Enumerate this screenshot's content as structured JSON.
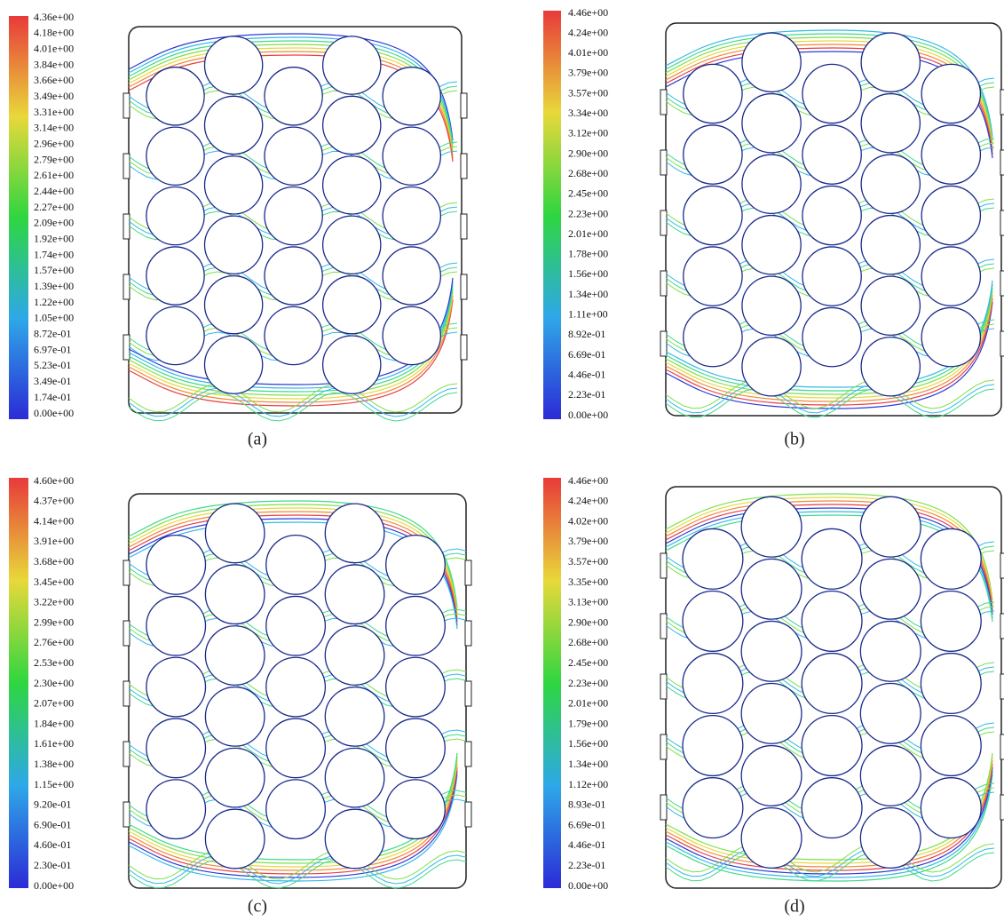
{
  "panels": [
    {
      "caption": "(a)",
      "colorbar_labels": [
        "4.36e+00",
        "4.18e+00",
        "4.01e+00",
        "3.84e+00",
        "3.66e+00",
        "3.49e+00",
        "3.31e+00",
        "3.14e+00",
        "2.96e+00",
        "2.79e+00",
        "2.61e+00",
        "2.44e+00",
        "2.27e+00",
        "2.09e+00",
        "1.92e+00",
        "1.74e+00",
        "1.57e+00",
        "1.39e+00",
        "1.22e+00",
        "1.05e+00",
        "8.72e-01",
        "6.97e-01",
        "5.23e-01",
        "3.49e-01",
        "1.74e-01",
        "0.00e+00"
      ]
    },
    {
      "caption": "(b)",
      "colorbar_labels": [
        "4.46e+00",
        "4.24e+00",
        "4.01e+00",
        "3.79e+00",
        "3.57e+00",
        "3.34e+00",
        "3.12e+00",
        "2.90e+00",
        "2.68e+00",
        "2.45e+00",
        "2.23e+00",
        "2.01e+00",
        "1.78e+00",
        "1.56e+00",
        "1.34e+00",
        "1.11e+00",
        "8.92e-01",
        "6.69e-01",
        "4.46e-01",
        "2.23e-01",
        "0.00e+00"
      ]
    },
    {
      "caption": "(c)",
      "colorbar_labels": [
        "4.60e+00",
        "4.37e+00",
        "4.14e+00",
        "3.91e+00",
        "3.68e+00",
        "3.45e+00",
        "3.22e+00",
        "2.99e+00",
        "2.76e+00",
        "2.53e+00",
        "2.30e+00",
        "2.07e+00",
        "1.84e+00",
        "1.61e+00",
        "1.38e+00",
        "1.15e+00",
        "9.20e-01",
        "6.90e-01",
        "4.60e-01",
        "2.30e-01",
        "0.00e+00"
      ]
    },
    {
      "caption": "(d)",
      "colorbar_labels": [
        "4.46e+00",
        "4.24e+00",
        "4.02e+00",
        "3.79e+00",
        "3.57e+00",
        "3.35e+00",
        "3.13e+00",
        "2.90e+00",
        "2.68e+00",
        "2.45e+00",
        "2.23e+00",
        "2.01e+00",
        "1.79e+00",
        "1.56e+00",
        "1.34e+00",
        "1.12e+00",
        "8.93e-01",
        "6.69e-01",
        "4.46e-01",
        "2.23e-01",
        "0.00e+00"
      ]
    }
  ]
}
